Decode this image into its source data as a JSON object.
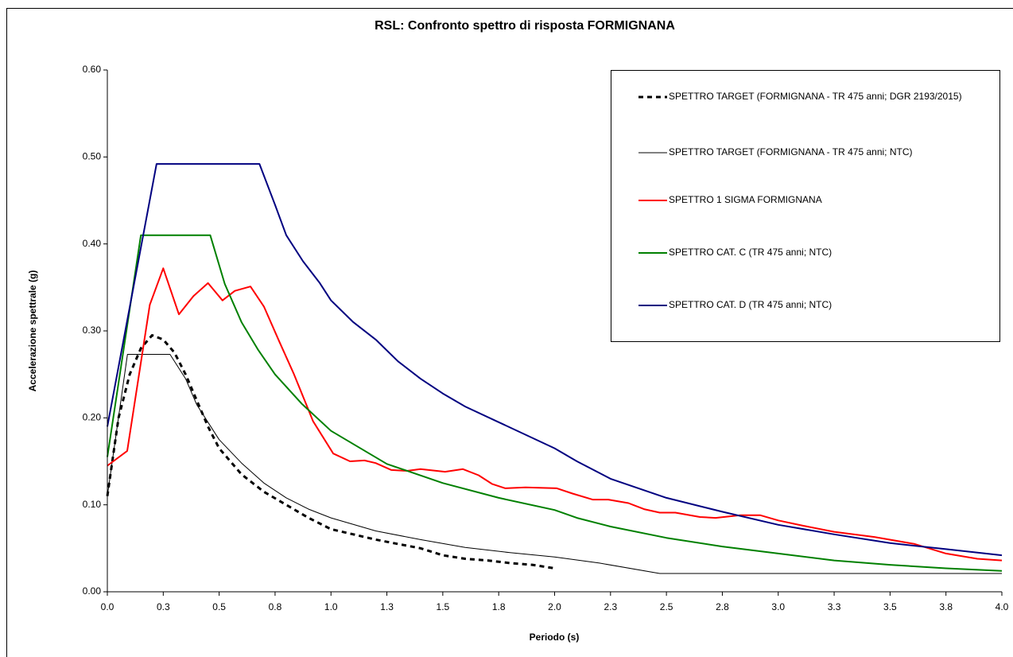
{
  "chart_data": {
    "type": "line",
    "title": "RSL: Confronto spettro di risposta FORMIGNANA",
    "xlabel": "Periodo (s)",
    "ylabel": "Accelerazione spettrale (g)",
    "xlim": [
      0,
      4
    ],
    "ylim": [
      0,
      0.6
    ],
    "xticks": [
      {
        "value": 0,
        "label": "0.0"
      },
      {
        "value": 0.25,
        "label": "0.3"
      },
      {
        "value": 0.5,
        "label": "0.5"
      },
      {
        "value": 0.75,
        "label": "0.8"
      },
      {
        "value": 1,
        "label": "1.0"
      },
      {
        "value": 1.25,
        "label": "1.3"
      },
      {
        "value": 1.5,
        "label": "1.5"
      },
      {
        "value": 1.75,
        "label": "1.8"
      },
      {
        "value": 2,
        "label": "2.0"
      },
      {
        "value": 2.25,
        "label": "2.3"
      },
      {
        "value": 2.5,
        "label": "2.5"
      },
      {
        "value": 2.75,
        "label": "2.8"
      },
      {
        "value": 3,
        "label": "3.0"
      },
      {
        "value": 3.25,
        "label": "3.3"
      },
      {
        "value": 3.5,
        "label": "3.5"
      },
      {
        "value": 3.75,
        "label": "3.8"
      },
      {
        "value": 4,
        "label": "4.0"
      }
    ],
    "yticks": [
      {
        "value": 0,
        "label": "0.00"
      },
      {
        "value": 0.1,
        "label": "0.10"
      },
      {
        "value": 0.2,
        "label": "0.20"
      },
      {
        "value": 0.3,
        "label": "0.30"
      },
      {
        "value": 0.4,
        "label": "0.40"
      },
      {
        "value": 0.5,
        "label": "0.50"
      },
      {
        "value": 0.6,
        "label": "0.60"
      }
    ],
    "grid": false,
    "legend_position": "top-right",
    "series": [
      {
        "name": "SPETTRO TARGET  (FORMIGNANA - TR 475 anni; DGR 2193/2015)",
        "color": "#000000",
        "dashed": true,
        "width": 3,
        "x": [
          0,
          0.05,
          0.1,
          0.15,
          0.2,
          0.25,
          0.3,
          0.35,
          0.4,
          0.45,
          0.5,
          0.6,
          0.7,
          0.8,
          0.9,
          1.0,
          1.1,
          1.2,
          1.3,
          1.4,
          1.5,
          1.6,
          1.7,
          1.8,
          1.9,
          2.0
        ],
        "values": [
          0.11,
          0.2,
          0.25,
          0.28,
          0.295,
          0.29,
          0.275,
          0.25,
          0.22,
          0.19,
          0.165,
          0.135,
          0.115,
          0.1,
          0.085,
          0.072,
          0.066,
          0.06,
          0.055,
          0.05,
          0.042,
          0.038,
          0.036,
          0.033,
          0.031,
          0.027
        ]
      },
      {
        "name": "SPETTRO TARGET (FORMIGNANA - TR 475 anni; NTC)",
        "color": "#000000",
        "dashed": false,
        "width": 1,
        "x": [
          0,
          0.09,
          0.28,
          0.35,
          0.4,
          0.5,
          0.6,
          0.7,
          0.8,
          0.9,
          1.0,
          1.2,
          1.4,
          1.6,
          1.8,
          2.0,
          2.2,
          2.47,
          4.0
        ],
        "values": [
          0.11,
          0.273,
          0.273,
          0.245,
          0.215,
          0.175,
          0.148,
          0.125,
          0.108,
          0.095,
          0.085,
          0.07,
          0.06,
          0.051,
          0.045,
          0.04,
          0.033,
          0.021,
          0.021
        ]
      },
      {
        "name": "SPETTRO 1 SIGMA FORMIGNANA",
        "color": "#ff0000",
        "dashed": false,
        "width": 2,
        "x": [
          0,
          0.089,
          0.19,
          0.25,
          0.32,
          0.385,
          0.45,
          0.515,
          0.57,
          0.64,
          0.7,
          0.77,
          0.835,
          0.92,
          1.01,
          1.085,
          1.15,
          1.2,
          1.27,
          1.34,
          1.4,
          1.51,
          1.59,
          1.66,
          1.72,
          1.78,
          1.87,
          2.01,
          2.08,
          2.17,
          2.24,
          2.33,
          2.4,
          2.47,
          2.54,
          2.65,
          2.72,
          2.83,
          2.92,
          3.0,
          3.11,
          3.25,
          3.43,
          3.61,
          3.75,
          3.89,
          4.0
        ],
        "values": [
          0.145,
          0.162,
          0.33,
          0.372,
          0.319,
          0.34,
          0.355,
          0.335,
          0.346,
          0.351,
          0.328,
          0.287,
          0.25,
          0.196,
          0.159,
          0.15,
          0.151,
          0.148,
          0.14,
          0.139,
          0.141,
          0.138,
          0.141,
          0.134,
          0.124,
          0.119,
          0.12,
          0.119,
          0.113,
          0.106,
          0.106,
          0.102,
          0.095,
          0.091,
          0.091,
          0.086,
          0.085,
          0.088,
          0.088,
          0.082,
          0.076,
          0.069,
          0.063,
          0.055,
          0.044,
          0.038,
          0.036
        ]
      },
      {
        "name": "SPETTRO CAT. C (TR 475 anni; NTC)",
        "color": "#008000",
        "dashed": false,
        "width": 2,
        "x": [
          0,
          0.15,
          0.46,
          0.525,
          0.6,
          0.675,
          0.75,
          0.87,
          1.0,
          1.25,
          1.5,
          1.75,
          2.0,
          2.1,
          2.25,
          2.5,
          2.75,
          3.0,
          3.25,
          3.5,
          3.75,
          4.0
        ],
        "values": [
          0.155,
          0.41,
          0.41,
          0.354,
          0.31,
          0.278,
          0.25,
          0.216,
          0.185,
          0.147,
          0.125,
          0.108,
          0.094,
          0.085,
          0.075,
          0.062,
          0.052,
          0.044,
          0.036,
          0.031,
          0.027,
          0.024
        ]
      },
      {
        "name": "SPETTRO CAT. D (TR 475 anni; NTC)",
        "color": "#000080",
        "dashed": false,
        "width": 2,
        "x": [
          0,
          0.22,
          0.68,
          0.75,
          0.8,
          0.875,
          0.95,
          1.0,
          1.1,
          1.2,
          1.3,
          1.4,
          1.5,
          1.6,
          1.75,
          2.0,
          2.1,
          2.25,
          2.5,
          2.75,
          3.0,
          3.25,
          3.5,
          3.75,
          4.0
        ],
        "values": [
          0.19,
          0.492,
          0.492,
          0.445,
          0.41,
          0.38,
          0.355,
          0.335,
          0.31,
          0.29,
          0.265,
          0.245,
          0.228,
          0.213,
          0.195,
          0.165,
          0.15,
          0.13,
          0.108,
          0.092,
          0.077,
          0.066,
          0.056,
          0.049,
          0.042
        ]
      }
    ]
  }
}
